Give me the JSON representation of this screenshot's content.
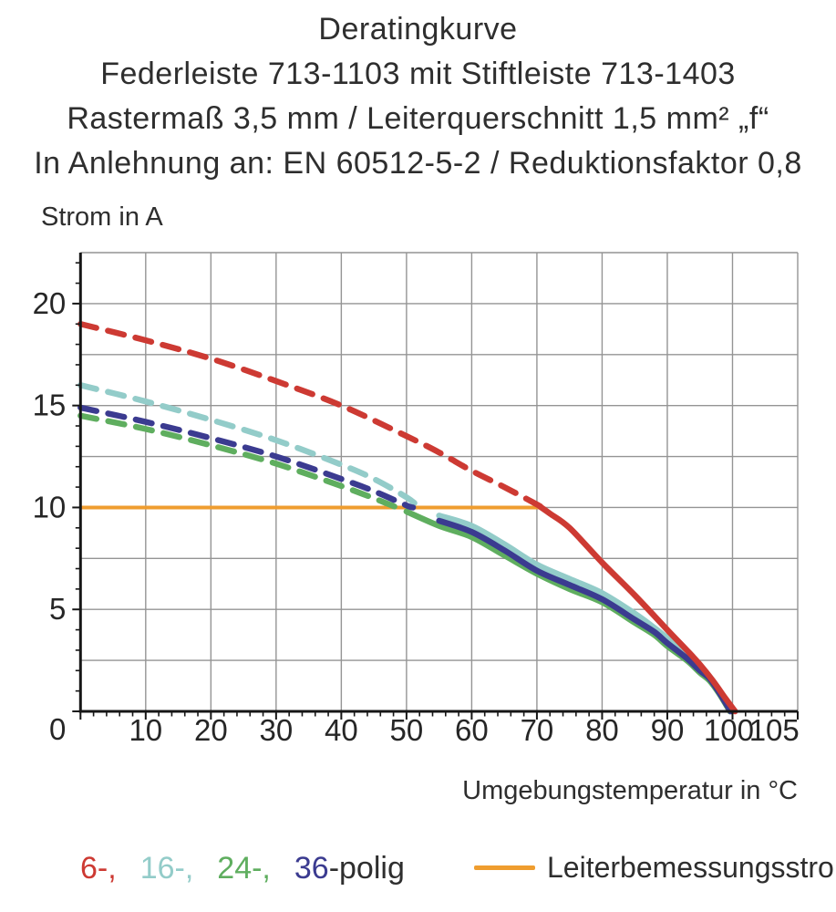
{
  "title": {
    "line1": "Deratingkurve",
    "line2": "Federleiste 713-1103 mit Stiftleiste 713-1403",
    "line3": "Rastermaß 3,5 mm / Leiterquerschnitt 1,5 mm² „f“",
    "line4": "In Anlehnung an: EN 60512-5-2 / Reduktionsfaktor 0,8"
  },
  "chart_data": {
    "type": "line",
    "title": "Deratingkurve",
    "xlabel": "Umgebungstemperatur in °C",
    "ylabel": "Strom in A",
    "xlim": [
      0,
      110
    ],
    "ylim": [
      0,
      22.5
    ],
    "x_ticks": [
      10,
      20,
      30,
      40,
      50,
      60,
      70,
      80,
      90,
      100,
      105
    ],
    "y_ticks": [
      0,
      5,
      10,
      15,
      20
    ],
    "x_grid_step": 10,
    "y_grid_step": 2.5,
    "x_minor_tick_step": 2,
    "y_minor_tick_step": 1,
    "grid": true,
    "grid_color": "#949494",
    "axis_color": "#161616",
    "label_color": "#262626",
    "note": "curves dashed above Leiterbemessungsstrom (10 A), solid below; split_t = temperature where curve crosses 10 A",
    "series": [
      {
        "name": "24-polig",
        "color": "#5fae5f",
        "split_t": 48.5,
        "points": [
          [
            0,
            14.5
          ],
          [
            10,
            13.85
          ],
          [
            20,
            13.05
          ],
          [
            30,
            12.15
          ],
          [
            40,
            11.05
          ],
          [
            45,
            10.45
          ],
          [
            48.5,
            10.0
          ],
          [
            50,
            9.8
          ],
          [
            55,
            9.1
          ],
          [
            60,
            8.55
          ],
          [
            65,
            7.65
          ],
          [
            70,
            6.75
          ],
          [
            75,
            6.0
          ],
          [
            80,
            5.35
          ],
          [
            85,
            4.35
          ],
          [
            88,
            3.75
          ],
          [
            90,
            3.2
          ],
          [
            93,
            2.5
          ],
          [
            95,
            1.9
          ],
          [
            96.5,
            1.5
          ],
          [
            98,
            0.85
          ],
          [
            99.6,
            0
          ]
        ]
      },
      {
        "name": "16-polig",
        "color": "#93ccc9",
        "split_t": 52,
        "points": [
          [
            0,
            16.0
          ],
          [
            10,
            15.2
          ],
          [
            20,
            14.3
          ],
          [
            30,
            13.3
          ],
          [
            40,
            12.1
          ],
          [
            45,
            11.4
          ],
          [
            50,
            10.5
          ],
          [
            52,
            10.0
          ],
          [
            55,
            9.6
          ],
          [
            60,
            9.1
          ],
          [
            65,
            8.2
          ],
          [
            70,
            7.2
          ],
          [
            75,
            6.5
          ],
          [
            80,
            5.8
          ],
          [
            85,
            4.8
          ],
          [
            88,
            4.1
          ],
          [
            90,
            3.6
          ],
          [
            93,
            2.8
          ],
          [
            95,
            2.2
          ],
          [
            96.5,
            1.7
          ],
          [
            98,
            1.0
          ],
          [
            99.9,
            0
          ]
        ]
      },
      {
        "name": "36-polig",
        "color": "#3b3b90",
        "split_t": 51,
        "points": [
          [
            0,
            14.9
          ],
          [
            10,
            14.2
          ],
          [
            20,
            13.4
          ],
          [
            30,
            12.5
          ],
          [
            40,
            11.4
          ],
          [
            45,
            10.8
          ],
          [
            50,
            10.1
          ],
          [
            51,
            10.0
          ],
          [
            55,
            9.35
          ],
          [
            60,
            8.8
          ],
          [
            65,
            7.9
          ],
          [
            70,
            6.9
          ],
          [
            75,
            6.2
          ],
          [
            80,
            5.5
          ],
          [
            85,
            4.5
          ],
          [
            88,
            3.9
          ],
          [
            90,
            3.35
          ],
          [
            93,
            2.6
          ],
          [
            95,
            2.0
          ],
          [
            96.5,
            1.6
          ],
          [
            98,
            0.9
          ],
          [
            99.7,
            0
          ]
        ]
      },
      {
        "name": "6-polig",
        "color": "#cd3a33",
        "split_t": 70.5,
        "points": [
          [
            0,
            19.0
          ],
          [
            10,
            18.2
          ],
          [
            20,
            17.3
          ],
          [
            30,
            16.2
          ],
          [
            40,
            15.0
          ],
          [
            50,
            13.5
          ],
          [
            55,
            12.7
          ],
          [
            60,
            11.8
          ],
          [
            65,
            11.0
          ],
          [
            70,
            10.15
          ],
          [
            72,
            9.7
          ],
          [
            75,
            9.0
          ],
          [
            80,
            7.3
          ],
          [
            85,
            5.7
          ],
          [
            90,
            4.0
          ],
          [
            93,
            3.0
          ],
          [
            95,
            2.3
          ],
          [
            97,
            1.5
          ],
          [
            99,
            0.6
          ],
          [
            100.4,
            0
          ]
        ]
      }
    ],
    "reference_line": {
      "name": "Leiterbemessungsstrom",
      "color": "#ef9d2f",
      "y": 10,
      "x_start": 0,
      "x_end": 71
    }
  },
  "legend": {
    "items": [
      {
        "text": "6-,",
        "color": "#cd3a33"
      },
      {
        "text": "16-,",
        "color": "#93ccc9"
      },
      {
        "text": "24-,",
        "color": "#5fae5f"
      },
      {
        "text": "36",
        "color": "#3b3b90"
      }
    ],
    "suffix": "-polig",
    "reference_label": "Leiterbemessungsstrom"
  }
}
